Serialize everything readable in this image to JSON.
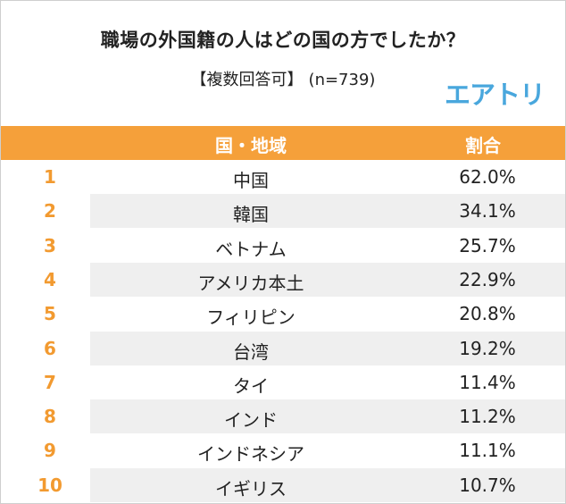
{
  "header": {
    "title": "職場の外国籍の人はどの国の方でしたか？",
    "subtitle_bracket": "【複数回答可】",
    "sample": "(n=739)",
    "brand": "エアトリ"
  },
  "table": {
    "columns": {
      "region": "国・地域",
      "ratio": "割合"
    },
    "rows": [
      {
        "rank": "1",
        "region": "中国",
        "ratio": "62.0%"
      },
      {
        "rank": "2",
        "region": "韓国",
        "ratio": "34.1%"
      },
      {
        "rank": "3",
        "region": "ベトナム",
        "ratio": "25.7%"
      },
      {
        "rank": "4",
        "region": "アメリカ本土",
        "ratio": "22.9%"
      },
      {
        "rank": "5",
        "region": "フィリピン",
        "ratio": "20.8%"
      },
      {
        "rank": "6",
        "region": "台湾",
        "ratio": "19.2%"
      },
      {
        "rank": "7",
        "region": "タイ",
        "ratio": "11.4%"
      },
      {
        "rank": "8",
        "region": "インド",
        "ratio": "11.2%"
      },
      {
        "rank": "9",
        "region": "インドネシア",
        "ratio": "11.1%"
      },
      {
        "rank": "10",
        "region": "イギリス",
        "ratio": "10.7%"
      }
    ]
  },
  "colors": {
    "header_bg": "#f5a03a",
    "rank_text": "#f29a30",
    "stripe": "#efefef",
    "brand": "#49a7dd"
  }
}
